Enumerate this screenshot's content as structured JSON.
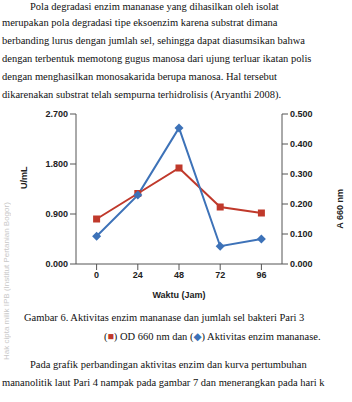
{
  "paragraph_top": {
    "lines": [
      "Pola degradasi enzim mananase yang dihasilkan oleh isolat",
      "merupakan pola degradasi tipe eksoenzim karena substrat dimana",
      "berbanding lurus dengan jumlah sel, sehingga dapat diasumsikan bahwa",
      "dengan terbentuk memotong gugus manosa dari ujung terluar ikatan polis",
      "dengan menghasilkan monosakarida berupa manosa. Hal tersebut",
      "dikarenakan substrat telah sempurna terhidrolisis (Aryanthi 2008)."
    ]
  },
  "watermark": "Hak cipta milik IPB (Institut Pertanian Bogor)",
  "chart_data": {
    "type": "line",
    "x": [
      0,
      24,
      48,
      72,
      96
    ],
    "xlim": [
      -12,
      108
    ],
    "xticks": [
      0,
      24,
      48,
      72,
      96
    ],
    "xlabel": "Waktu (Jam)",
    "ylabel": "U/mL",
    "y2label": "A 660 nm",
    "ylim": [
      0,
      2.7
    ],
    "yticks": [
      {
        "value": 0,
        "label": "0.000"
      },
      {
        "value": 0.9,
        "label": "0.900"
      },
      {
        "value": 1.8,
        "label": "1.800"
      },
      {
        "value": 2.7,
        "label": "2.700"
      }
    ],
    "y2lim": [
      0,
      0.5
    ],
    "y2ticks": [
      {
        "value": 0,
        "label": "0.000"
      },
      {
        "value": 0.1,
        "label": "0.100"
      },
      {
        "value": 0.2,
        "label": "0.200"
      },
      {
        "value": 0.3,
        "label": "0.300"
      },
      {
        "value": 0.4,
        "label": "0.400"
      },
      {
        "value": 0.5,
        "label": "0.500"
      }
    ],
    "series": [
      {
        "name": "OD 660 nm",
        "color": "#c0392b",
        "marker": "square",
        "axis": "y2",
        "values": [
          0.15,
          0.235,
          0.32,
          0.19,
          0.17
        ]
      },
      {
        "name": "Aktivitas enzim mananase",
        "color": "#3d72b8",
        "marker": "diamond",
        "values": [
          0.5,
          1.24,
          2.45,
          0.32,
          0.45
        ]
      }
    ]
  },
  "caption": {
    "line1": "Gambar 6. Aktivitas enzim mananase dan jumlah sel bakteri Pari 3",
    "line2": [
      {
        "text": "("
      },
      {
        "text": "■",
        "color": "#c0392b"
      },
      {
        "text": ") OD 660 nm dan ("
      },
      {
        "text": "◆",
        "color": "#3d72b8"
      },
      {
        "text": ") Aktivitas enzim mananase."
      }
    ]
  },
  "paragraph_bottom": {
    "lines": [
      "Pada grafik perbandingan aktivitas enzim dan kurva pertumbuhan",
      "mananolitik laut Pari 4 nampak pada gambar 7 dan menerangkan pada hari k"
    ]
  }
}
